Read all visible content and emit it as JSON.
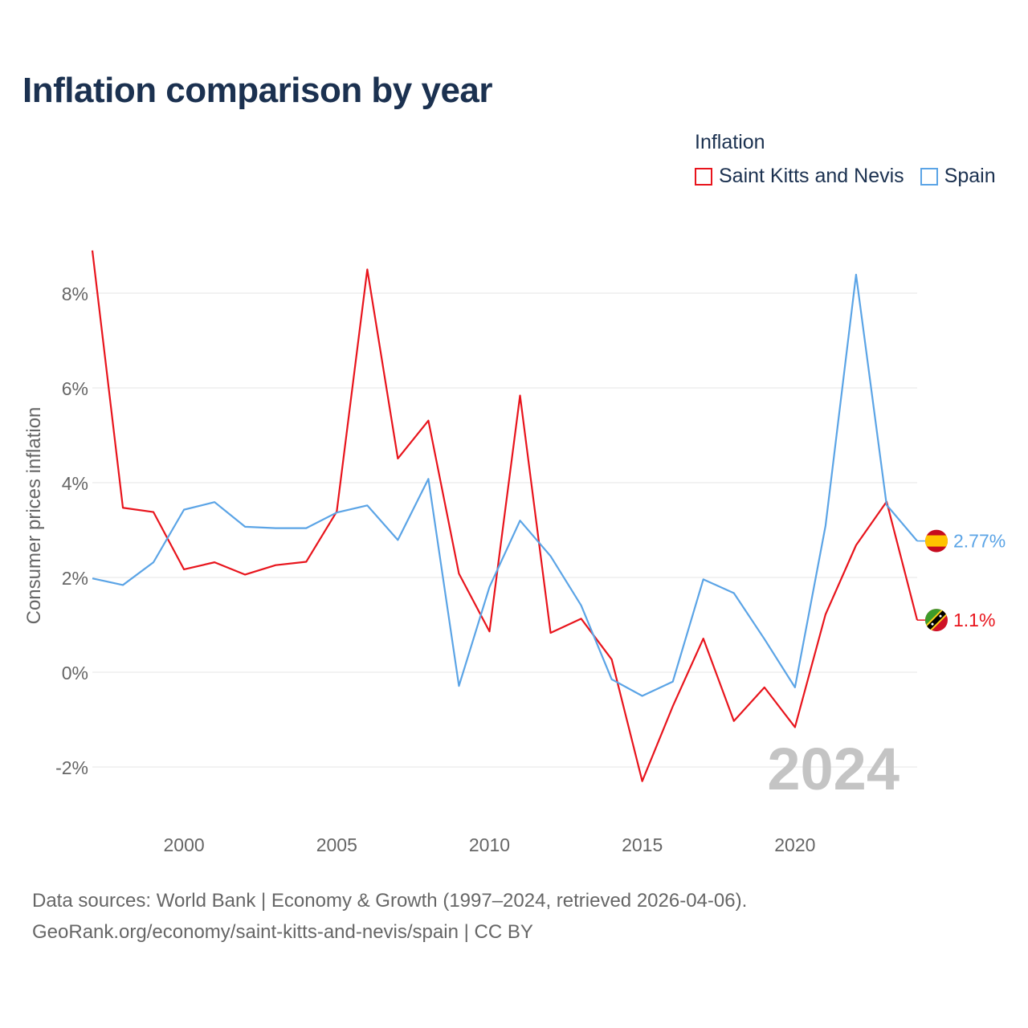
{
  "title": "Inflation comparison by year",
  "legend": {
    "title": "Inflation",
    "items": [
      {
        "name": "Saint Kitts and Nevis",
        "color": "#e8141c"
      },
      {
        "name": "Spain",
        "color": "#5ba4e6"
      }
    ]
  },
  "watermark_year": "2024",
  "sources": {
    "line1": "Data sources: World Bank | Economy & Growth (1997–2024, retrieved 2026-04-06).",
    "line2": "GeoRank.org/economy/saint-kitts-and-nevis/spain | CC BY"
  },
  "chart_data": {
    "type": "line",
    "title": "Inflation comparison by year",
    "xlabel": "",
    "ylabel": "Consumer prices inflation",
    "xlim": [
      1997,
      2024
    ],
    "ylim": [
      -3,
      9
    ],
    "x_ticks": [
      2000,
      2005,
      2010,
      2015,
      2020
    ],
    "y_ticks": [
      -2,
      0,
      2,
      4,
      6,
      8
    ],
    "y_tick_labels": [
      "-2%",
      "0%",
      "2%",
      "4%",
      "6%",
      "8%"
    ],
    "grid": true,
    "x": [
      1997,
      1998,
      1999,
      2000,
      2001,
      2002,
      2003,
      2004,
      2005,
      2006,
      2007,
      2008,
      2009,
      2010,
      2011,
      2012,
      2013,
      2014,
      2015,
      2016,
      2017,
      2018,
      2019,
      2020,
      2021,
      2022,
      2023,
      2024
    ],
    "series": [
      {
        "name": "Saint Kitts and Nevis",
        "color": "#e8141c",
        "end_label": "1.1%",
        "values": [
          8.9,
          3.47,
          3.38,
          2.17,
          2.32,
          2.06,
          2.26,
          2.33,
          3.39,
          8.5,
          4.51,
          5.31,
          2.08,
          0.86,
          5.84,
          0.83,
          1.13,
          0.27,
          -2.3,
          -0.72,
          0.71,
          -1.03,
          -0.32,
          -1.16,
          1.22,
          2.68,
          3.6,
          1.1
        ]
      },
      {
        "name": "Spain",
        "color": "#5ba4e6",
        "end_label": "2.77%",
        "values": [
          1.98,
          1.84,
          2.32,
          3.43,
          3.59,
          3.07,
          3.04,
          3.04,
          3.37,
          3.52,
          2.79,
          4.08,
          -0.29,
          1.8,
          3.2,
          2.45,
          1.41,
          -0.15,
          -0.5,
          -0.2,
          1.96,
          1.67,
          0.7,
          -0.32,
          3.09,
          8.39,
          3.53,
          2.77
        ]
      }
    ]
  }
}
